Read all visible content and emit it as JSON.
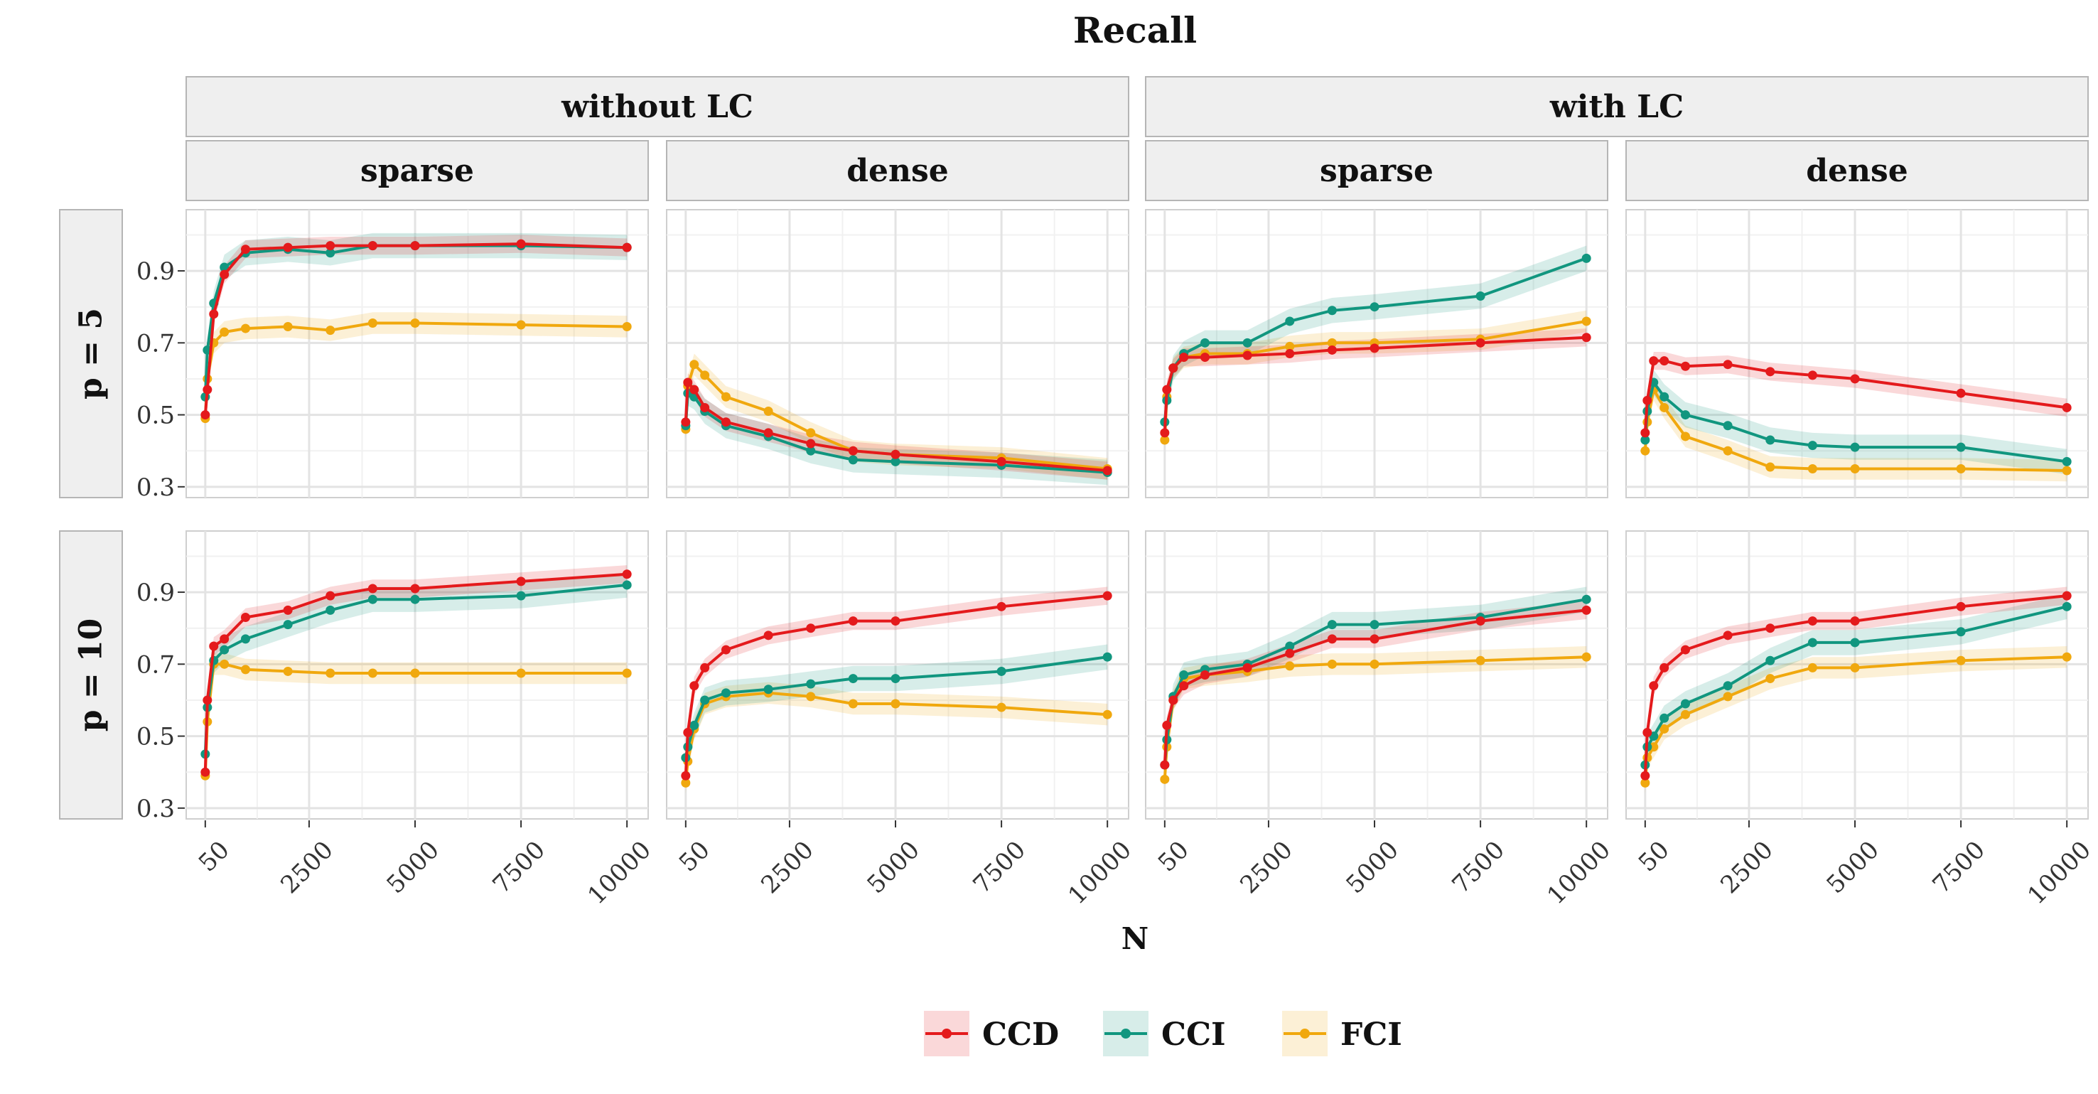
{
  "title": "Recall",
  "xlabel": "N",
  "facets": {
    "col_groups": [
      "without LC",
      "with LC"
    ],
    "density": [
      "sparse",
      "dense"
    ],
    "rows": [
      "p = 5",
      "p = 10"
    ]
  },
  "legend": {
    "placement": "bottom",
    "entries": [
      {
        "name": "CCD",
        "color": "#e41a1c",
        "fill": "#f8c4c6"
      },
      {
        "name": "CCI",
        "color": "#11967f",
        "fill": "#bfe3dd"
      },
      {
        "name": "FCI",
        "color": "#f0a80e",
        "fill": "#fbe6b6"
      }
    ]
  },
  "chart_data": {
    "type": "line",
    "x": [
      50,
      100,
      250,
      500,
      1000,
      2000,
      3000,
      4000,
      5000,
      7500,
      10000
    ],
    "x_ticks": [
      50,
      2500,
      5000,
      7500,
      10000
    ],
    "x_tick_labels": [
      "50",
      "2500",
      "5000",
      "7500",
      "10000"
    ],
    "xlim": [
      -400,
      10500
    ],
    "y_ticks": [
      0.3,
      0.5,
      0.7,
      0.9
    ],
    "y_tick_labels": [
      "0.3",
      "0.5",
      "0.7",
      "0.9"
    ],
    "ylim": [
      0.27,
      1.07
    ],
    "grid": true,
    "band_width": {
      "CCD": 0.025,
      "CCI": 0.035,
      "FCI": 0.03
    },
    "panels": [
      {
        "row": "p = 5",
        "group": "without LC",
        "density": "sparse",
        "series": [
          {
            "name": "CCD",
            "values": [
              0.5,
              0.57,
              0.78,
              0.89,
              0.96,
              0.965,
              0.97,
              0.97,
              0.97,
              0.975,
              0.965
            ]
          },
          {
            "name": "CCI",
            "values": [
              0.55,
              0.68,
              0.81,
              0.91,
              0.95,
              0.96,
              0.95,
              0.97,
              0.97,
              0.97,
              0.965
            ]
          },
          {
            "name": "FCI",
            "values": [
              0.49,
              0.6,
              0.7,
              0.73,
              0.74,
              0.745,
              0.735,
              0.755,
              0.755,
              0.75,
              0.745
            ]
          }
        ]
      },
      {
        "row": "p = 5",
        "group": "without LC",
        "density": "dense",
        "series": [
          {
            "name": "CCD",
            "values": [
              0.48,
              0.59,
              0.57,
              0.52,
              0.48,
              0.45,
              0.42,
              0.4,
              0.39,
              0.37,
              0.345
            ]
          },
          {
            "name": "CCI",
            "values": [
              0.47,
              0.56,
              0.55,
              0.51,
              0.47,
              0.44,
              0.4,
              0.375,
              0.37,
              0.36,
              0.34
            ]
          },
          {
            "name": "FCI",
            "values": [
              0.46,
              0.58,
              0.64,
              0.61,
              0.55,
              0.51,
              0.45,
              0.4,
              0.39,
              0.38,
              0.35
            ]
          }
        ]
      },
      {
        "row": "p = 5",
        "group": "with LC",
        "density": "sparse",
        "series": [
          {
            "name": "CCD",
            "values": [
              0.45,
              0.57,
              0.63,
              0.66,
              0.66,
              0.665,
              0.67,
              0.68,
              0.685,
              0.7,
              0.715
            ]
          },
          {
            "name": "CCI",
            "values": [
              0.48,
              0.54,
              0.63,
              0.67,
              0.7,
              0.7,
              0.76,
              0.79,
              0.8,
              0.83,
              0.935
            ]
          },
          {
            "name": "FCI",
            "values": [
              0.43,
              0.55,
              0.63,
              0.66,
              0.67,
              0.67,
              0.69,
              0.7,
              0.7,
              0.71,
              0.76
            ]
          }
        ]
      },
      {
        "row": "p = 5",
        "group": "with LC",
        "density": "dense",
        "series": [
          {
            "name": "CCD",
            "values": [
              0.45,
              0.54,
              0.65,
              0.65,
              0.635,
              0.64,
              0.62,
              0.61,
              0.6,
              0.56,
              0.52
            ]
          },
          {
            "name": "CCI",
            "values": [
              0.43,
              0.51,
              0.59,
              0.55,
              0.5,
              0.47,
              0.43,
              0.415,
              0.41,
              0.41,
              0.37
            ]
          },
          {
            "name": "FCI",
            "values": [
              0.4,
              0.48,
              0.57,
              0.52,
              0.44,
              0.4,
              0.355,
              0.35,
              0.35,
              0.35,
              0.345
            ]
          }
        ]
      },
      {
        "row": "p = 10",
        "group": "without LC",
        "density": "sparse",
        "series": [
          {
            "name": "CCD",
            "values": [
              0.4,
              0.6,
              0.75,
              0.77,
              0.83,
              0.85,
              0.89,
              0.91,
              0.91,
              0.93,
              0.95
            ]
          },
          {
            "name": "CCI",
            "values": [
              0.45,
              0.58,
              0.71,
              0.74,
              0.77,
              0.81,
              0.85,
              0.88,
              0.88,
              0.89,
              0.92
            ]
          },
          {
            "name": "FCI",
            "values": [
              0.39,
              0.54,
              0.7,
              0.7,
              0.685,
              0.68,
              0.675,
              0.675,
              0.675,
              0.675,
              0.675
            ]
          }
        ]
      },
      {
        "row": "p = 10",
        "group": "without LC",
        "density": "dense",
        "series": [
          {
            "name": "CCD",
            "values": [
              0.39,
              0.51,
              0.64,
              0.69,
              0.74,
              0.78,
              0.8,
              0.82,
              0.82,
              0.86,
              0.89
            ]
          },
          {
            "name": "CCI",
            "values": [
              0.44,
              0.47,
              0.53,
              0.6,
              0.62,
              0.63,
              0.645,
              0.66,
              0.66,
              0.68,
              0.72
            ]
          },
          {
            "name": "FCI",
            "values": [
              0.37,
              0.43,
              0.52,
              0.59,
              0.61,
              0.62,
              0.61,
              0.59,
              0.59,
              0.58,
              0.56
            ]
          }
        ]
      },
      {
        "row": "p = 10",
        "group": "with LC",
        "density": "sparse",
        "series": [
          {
            "name": "CCD",
            "values": [
              0.42,
              0.53,
              0.6,
              0.64,
              0.67,
              0.69,
              0.73,
              0.77,
              0.77,
              0.82,
              0.85
            ]
          },
          {
            "name": "CCI",
            "values": [
              0.42,
              0.49,
              0.61,
              0.67,
              0.685,
              0.7,
              0.75,
              0.81,
              0.81,
              0.83,
              0.88
            ]
          },
          {
            "name": "FCI",
            "values": [
              0.38,
              0.47,
              0.6,
              0.66,
              0.67,
              0.68,
              0.695,
              0.7,
              0.7,
              0.71,
              0.72
            ]
          }
        ]
      },
      {
        "row": "p = 10",
        "group": "with LC",
        "density": "dense",
        "series": [
          {
            "name": "CCD",
            "values": [
              0.39,
              0.51,
              0.64,
              0.69,
              0.74,
              0.78,
              0.8,
              0.82,
              0.82,
              0.86,
              0.89
            ]
          },
          {
            "name": "CCI",
            "values": [
              0.42,
              0.47,
              0.5,
              0.55,
              0.59,
              0.64,
              0.71,
              0.76,
              0.76,
              0.79,
              0.86
            ]
          },
          {
            "name": "FCI",
            "values": [
              0.37,
              0.44,
              0.47,
              0.52,
              0.56,
              0.61,
              0.66,
              0.69,
              0.69,
              0.71,
              0.72
            ]
          }
        ]
      }
    ]
  }
}
